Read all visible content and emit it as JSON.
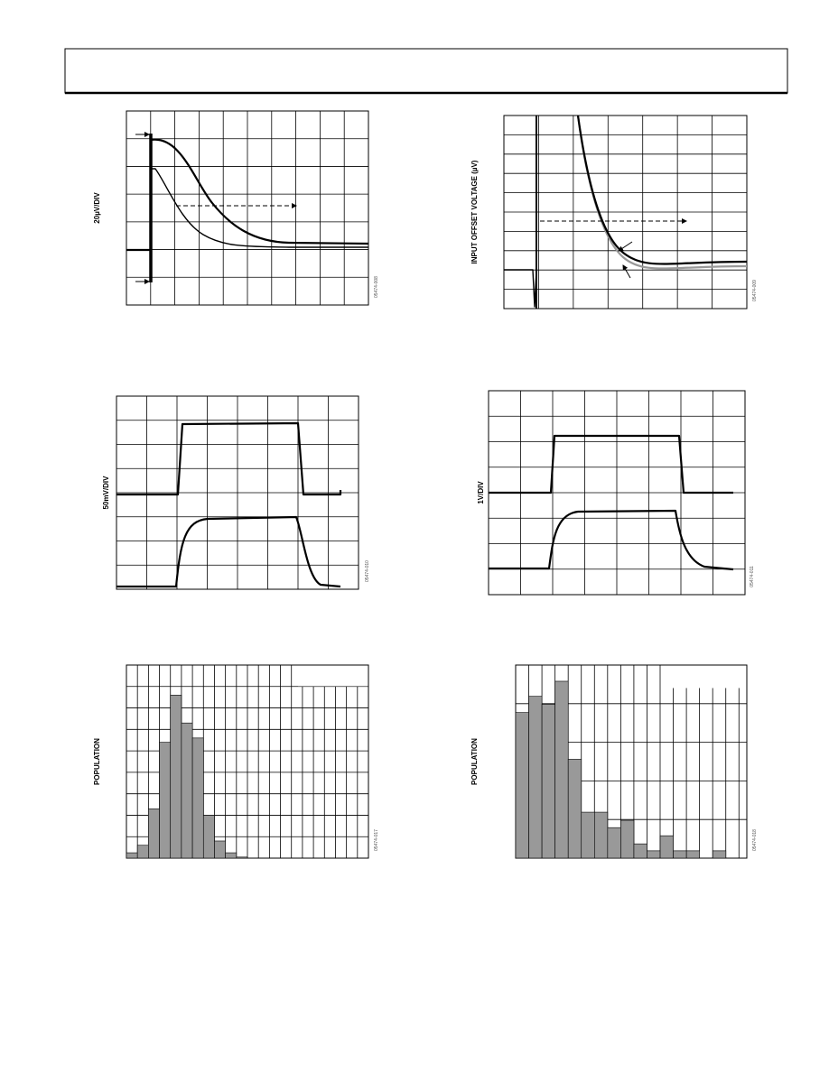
{
  "figures": [
    {
      "y_label": "20µV/DIV",
      "code": "05474-008"
    },
    {
      "y_label": "INPUT OFFSET VOLTAGE (µV)",
      "code": "05474-009"
    },
    {
      "y_label": "50mV/DIV",
      "code": "05474-010"
    },
    {
      "y_label": "1V/DIV",
      "code": "05474-011"
    },
    {
      "y_label": "POPULATION",
      "code": "05474-017",
      "color": "#999999",
      "values": [
        0.25,
        0.6,
        2.3,
        5.4,
        7.6,
        6.3,
        5.6,
        2,
        0.8,
        0.25,
        0.05
      ]
    },
    {
      "y_label": "POPULATION",
      "code": "05474-018",
      "color": "#999999",
      "values": [
        3.77,
        4.19,
        3.98,
        4.58,
        2.56,
        1.19,
        1.19,
        0.79,
        0.98,
        0.37,
        0.19,
        0.58,
        0.19,
        0.19,
        0,
        0.19
      ]
    }
  ]
}
